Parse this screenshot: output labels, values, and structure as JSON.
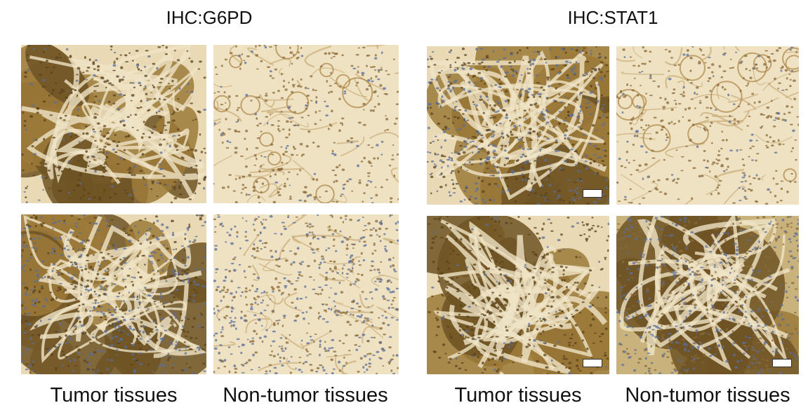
{
  "groups": [
    {
      "title": "IHC:G6PD",
      "captions": [
        "Tumor tissues",
        "Non-tumor tissues"
      ],
      "panels": [
        {
          "name": "g6pd-tumor-top",
          "stain": "tumor",
          "scale_bar": false
        },
        {
          "name": "g6pd-normal-top",
          "stain": "normal",
          "scale_bar": false
        },
        {
          "name": "g6pd-tumor-bottom",
          "stain": "tumor-blue",
          "scale_bar": false
        },
        {
          "name": "g6pd-normal-bottom",
          "stain": "normal-blue",
          "scale_bar": false
        }
      ]
    },
    {
      "title": "IHC:STAT1",
      "captions": [
        "Tumor tissues",
        "Non-tumor tissues"
      ],
      "panels": [
        {
          "name": "stat1-tumor-top",
          "stain": "tumor-blue",
          "scale_bar": true
        },
        {
          "name": "stat1-normal-top",
          "stain": "normal",
          "scale_bar": false
        },
        {
          "name": "stat1-tumor-bottom",
          "stain": "tumor",
          "scale_bar": true
        },
        {
          "name": "stat1-normal-bottom",
          "stain": "mixed",
          "scale_bar": true
        }
      ]
    }
  ],
  "colors": {
    "tumor_brown": "#9c7a3a",
    "tumor_dark": "#6e5424",
    "stroma_light": "#e9d9b4",
    "normal_bg": "#efe2c2",
    "normal_line": "#c9ad78",
    "nuclei_blue": "#5a6e9c",
    "background": "#ffffff"
  }
}
